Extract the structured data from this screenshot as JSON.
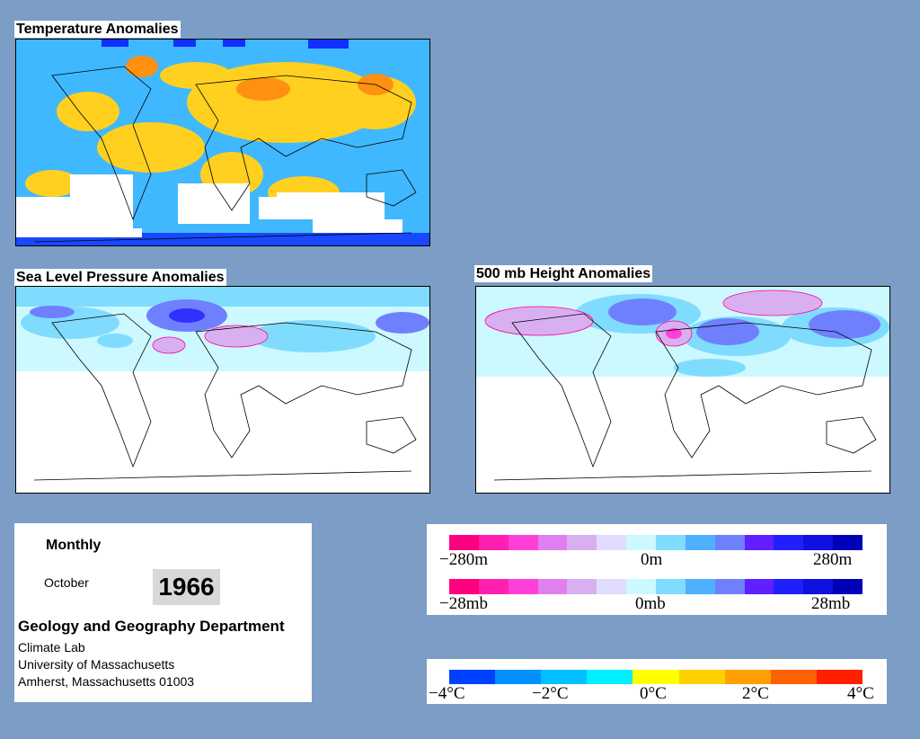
{
  "maps": {
    "temperature_title": "Temperature Anomalies",
    "pressure_title": "Sea Level Pressure Anomalies",
    "height_title": "500 mb Height Anomalies"
  },
  "info": {
    "period": "Monthly",
    "month": "October",
    "year": "1966",
    "department": "Geology and Geography Department",
    "lab": "Climate Lab",
    "university": "University of Massachusetts",
    "address": "Amherst, Massachusetts 01003"
  },
  "legends": {
    "height": {
      "min": "−280m",
      "mid": "0m",
      "max": "280m"
    },
    "pressure": {
      "min": "−28mb",
      "mid": "0mb",
      "max": "28mb"
    },
    "temperature": {
      "t1": "−4°C",
      "t2": "−2°C",
      "t3": "0°C",
      "t4": "2°C",
      "t5": "4°C"
    }
  },
  "colors": {
    "anomaly_scale": [
      "#ff0080",
      "#ff20b0",
      "#ff40d8",
      "#e080f0",
      "#d8b0f0",
      "#e0dcff",
      "#ccf8ff",
      "#80dcff",
      "#4fb0ff",
      "#6f80ff",
      "#6020ff",
      "#2020ff",
      "#1010e0",
      "#0000b8"
    ],
    "temperature_scale": [
      "#0040ff",
      "#0090ff",
      "#00c0ff",
      "#00f0ff",
      "#ffff00",
      "#ffd000",
      "#ffa000",
      "#ff6000",
      "#ff2000"
    ]
  }
}
